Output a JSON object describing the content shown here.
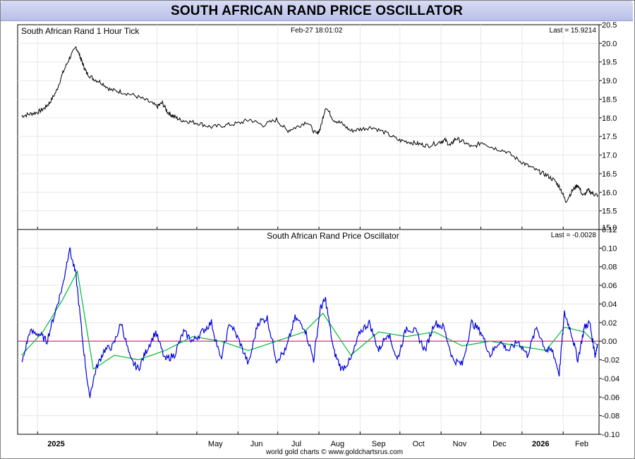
{
  "page_title": "SOUTH AFRICAN RAND PRICE OSCILLATOR",
  "footer": "world gold charts © www.goldchartsrus.com",
  "colors": {
    "price_line": "#000000",
    "oscillator_line": "#0000dd",
    "signal_line": "#00bb33",
    "zero_line": "#cc0066",
    "grid": "#e6e6e6"
  },
  "chart_data": [
    {
      "type": "line",
      "title": "South African Rand 1 Hour Tick",
      "timestamp": "Feb-27  18:01:02",
      "last_label": "Last = 15.9214",
      "x_tick_labels": [
        "2025",
        "May",
        "Jun",
        "Jul",
        "Aug",
        "Sep",
        "Oct",
        "Nov",
        "Dec",
        "2026",
        "Feb"
      ],
      "y_tick_labels": [
        "20.5",
        "20.0",
        "19.5",
        "19.0",
        "18.5",
        "18.0",
        "17.5",
        "17.0",
        "16.5",
        "16.0",
        "15.5",
        "15.0"
      ],
      "ylim": [
        15.0,
        20.5
      ],
      "grid": true,
      "series": [
        {
          "x": [
            "2024-12-20",
            "2024-12-26",
            "2025-01-01",
            "2025-01-06",
            "2025-01-10",
            "2025-01-15",
            "2025-01-20",
            "2025-01-25",
            "2025-01-30",
            "2025-02-02",
            "2025-02-04",
            "2025-02-07",
            "2025-02-12",
            "2025-02-18",
            "2025-02-25",
            "2025-03-05",
            "2025-03-15",
            "2025-03-25",
            "2025-04-01",
            "2025-04-05",
            "2025-04-09",
            "2025-04-13",
            "2025-04-18",
            "2025-04-25",
            "2025-05-03",
            "2025-05-12",
            "2025-05-22",
            "2025-06-01",
            "2025-06-10",
            "2025-06-20",
            "2025-06-30",
            "2025-07-08",
            "2025-07-15",
            "2025-07-23",
            "2025-07-30",
            "2025-08-02",
            "2025-08-06",
            "2025-08-12",
            "2025-08-18",
            "2025-08-25",
            "2025-09-02",
            "2025-09-10",
            "2025-09-20",
            "2025-09-30",
            "2025-10-08",
            "2025-10-15",
            "2025-10-22",
            "2025-10-31",
            "2025-11-04",
            "2025-11-08",
            "2025-11-12",
            "2025-11-18",
            "2025-11-25",
            "2025-12-02",
            "2025-12-10",
            "2025-12-20",
            "2025-12-30",
            "2026-01-06",
            "2026-01-14",
            "2026-01-20",
            "2026-01-26",
            "2026-01-30",
            "2026-02-03",
            "2026-02-08",
            "2026-02-12",
            "2026-02-16",
            "2026-02-20",
            "2026-02-24",
            "2026-02-27"
          ],
          "y": [
            18.05,
            18.1,
            18.15,
            18.25,
            18.4,
            18.7,
            19.2,
            19.6,
            19.9,
            19.65,
            19.45,
            19.2,
            19.05,
            18.95,
            18.75,
            18.7,
            18.6,
            18.45,
            18.3,
            18.4,
            18.15,
            18.05,
            17.95,
            17.9,
            17.85,
            17.75,
            17.8,
            17.85,
            17.95,
            17.8,
            17.95,
            17.65,
            17.75,
            17.9,
            17.55,
            17.7,
            18.3,
            17.95,
            17.85,
            17.65,
            17.7,
            17.75,
            17.6,
            17.4,
            17.35,
            17.3,
            17.25,
            17.35,
            17.4,
            17.25,
            17.45,
            17.35,
            17.2,
            17.35,
            17.2,
            17.1,
            16.85,
            16.7,
            16.55,
            16.45,
            16.3,
            16.1,
            15.75,
            16.05,
            16.2,
            15.9,
            16.05,
            15.95,
            15.92
          ]
        }
      ]
    },
    {
      "type": "line",
      "title": "South African Rand Price Oscillator",
      "last_label": "Last = -0.0028",
      "x_tick_labels": [
        "2025",
        "May",
        "Jun",
        "Jul",
        "Aug",
        "Sep",
        "Oct",
        "Nov",
        "Dec",
        "2026",
        "Feb"
      ],
      "y_tick_labels": [
        "0.12",
        "0.10",
        "0.08",
        "0.06",
        "0.04",
        "0.02",
        "0.00",
        "-0.02",
        "-0.04",
        "-0.06",
        "-0.08",
        "-0.10"
      ],
      "ylim": [
        -0.1,
        0.12
      ],
      "grid": true,
      "series": [
        {
          "x": [
            "2024-12-20",
            "2024-12-26",
            "2025-01-02",
            "2025-01-08",
            "2025-01-14",
            "2025-01-20",
            "2025-01-25",
            "2025-01-30",
            "2025-02-04",
            "2025-02-09",
            "2025-02-14",
            "2025-02-20",
            "2025-02-27",
            "2025-03-05",
            "2025-03-12",
            "2025-03-18",
            "2025-03-24",
            "2025-03-31",
            "2025-04-07",
            "2025-04-14",
            "2025-04-21",
            "2025-04-28",
            "2025-05-05",
            "2025-05-12",
            "2025-05-19",
            "2025-05-26",
            "2025-06-02",
            "2025-06-09",
            "2025-06-16",
            "2025-06-23",
            "2025-06-30",
            "2025-07-07",
            "2025-07-14",
            "2025-07-21",
            "2025-07-28",
            "2025-08-02",
            "2025-08-06",
            "2025-08-12",
            "2025-08-18",
            "2025-08-25",
            "2025-09-01",
            "2025-09-08",
            "2025-09-15",
            "2025-09-22",
            "2025-09-29",
            "2025-10-06",
            "2025-10-13",
            "2025-10-20",
            "2025-10-27",
            "2025-11-03",
            "2025-11-10",
            "2025-11-17",
            "2025-11-24",
            "2025-12-01",
            "2025-12-08",
            "2025-12-15",
            "2025-12-22",
            "2025-12-29",
            "2026-01-05",
            "2026-01-12",
            "2026-01-19",
            "2026-01-24",
            "2026-01-29",
            "2026-02-02",
            "2026-02-07",
            "2026-02-12",
            "2026-02-17",
            "2026-02-21",
            "2026-02-25",
            "2026-02-27"
          ],
          "y": [
            -0.025,
            0.01,
            0.008,
            0.0,
            0.03,
            0.06,
            0.1,
            0.07,
            0.0,
            -0.06,
            -0.03,
            -0.01,
            -0.005,
            0.02,
            -0.02,
            -0.03,
            -0.01,
            0.01,
            -0.02,
            -0.015,
            0.01,
            0.0,
            0.01,
            0.02,
            -0.02,
            0.02,
            0.0,
            -0.025,
            0.02,
            0.025,
            -0.02,
            -0.01,
            0.025,
            0.015,
            -0.02,
            0.035,
            0.045,
            -0.01,
            -0.03,
            -0.02,
            0.01,
            0.02,
            -0.01,
            0.01,
            -0.02,
            0.015,
            0.01,
            -0.01,
            0.02,
            0.015,
            -0.02,
            -0.025,
            0.02,
            0.01,
            -0.015,
            0.0,
            -0.01,
            0.0,
            -0.015,
            0.015,
            -0.01,
            -0.01,
            -0.035,
            0.03,
            0.01,
            -0.02,
            0.015,
            0.02,
            -0.015,
            -0.003
          ]
        },
        {
          "name": "signal",
          "x": [
            "2024-12-20",
            "2025-01-05",
            "2025-01-20",
            "2025-01-31",
            "2025-02-12",
            "2025-02-28",
            "2025-03-18",
            "2025-04-07",
            "2025-04-28",
            "2025-05-19",
            "2025-06-09",
            "2025-06-30",
            "2025-07-21",
            "2025-08-04",
            "2025-08-25",
            "2025-09-15",
            "2025-10-06",
            "2025-10-27",
            "2025-11-17",
            "2025-12-08",
            "2025-12-29",
            "2026-01-19",
            "2026-02-02",
            "2026-02-17",
            "2026-02-27"
          ],
          "y": [
            -0.015,
            0.01,
            0.045,
            0.075,
            -0.03,
            -0.015,
            -0.02,
            -0.01,
            0.005,
            0.0,
            -0.01,
            0.0,
            0.01,
            0.03,
            -0.015,
            0.01,
            0.005,
            0.01,
            -0.005,
            0.0,
            -0.005,
            -0.01,
            0.015,
            0.01,
            -0.005
          ]
        }
      ]
    }
  ]
}
